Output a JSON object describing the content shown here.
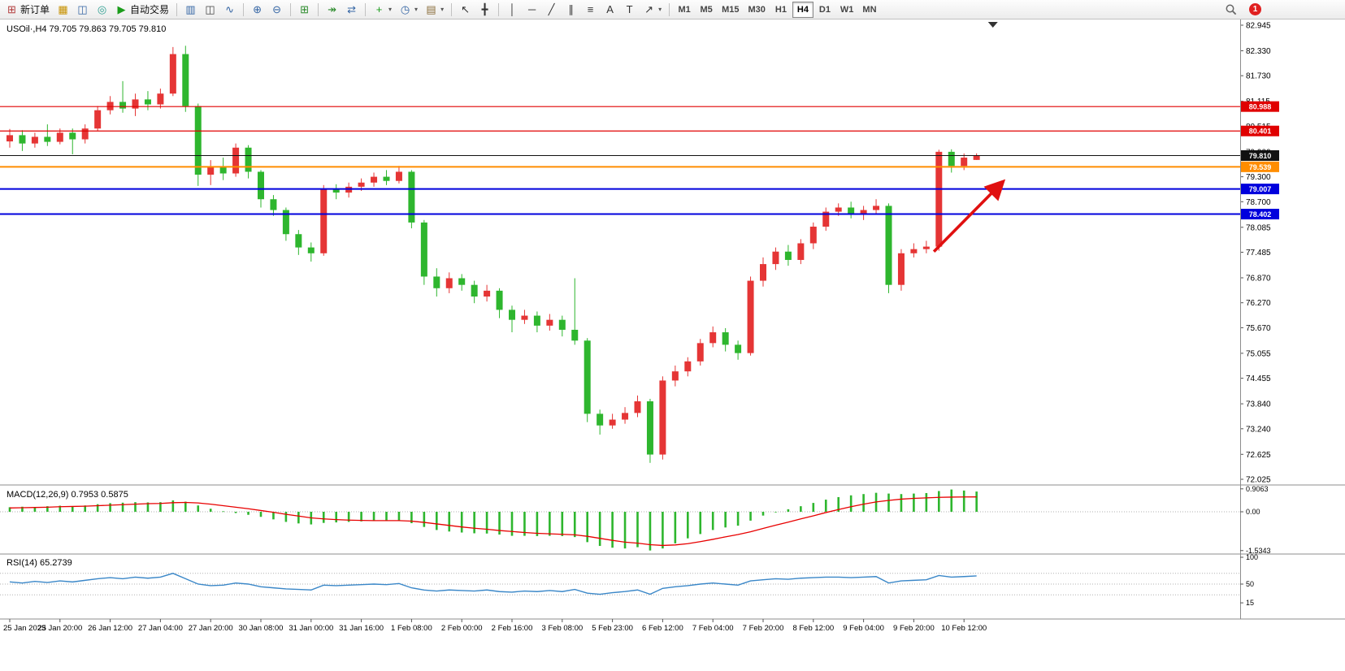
{
  "colors": {
    "up": "#e53535",
    "down": "#2eb62e",
    "macd_histogram": "#2eb62e",
    "macd_signal": "#e80000",
    "rsi_line": "#3a87c8",
    "arrow": "#e01010",
    "axis_text": "#000000",
    "panel_border": "#8c8c8c"
  },
  "toolbar": {
    "notification_count": "1",
    "groups": [
      [
        {
          "name": "new-order-button",
          "icon": "new-order-icon",
          "glyph": "⊞",
          "color": "#b23b3b",
          "label": "新订单"
        },
        {
          "name": "market-watch-button",
          "icon": "market-watch-icon",
          "glyph": "▦",
          "color": "#c79100"
        },
        {
          "name": "navigator-button",
          "icon": "navigator-icon",
          "glyph": "◫",
          "color": "#3465a4"
        },
        {
          "name": "community-button",
          "icon": "community-icon",
          "glyph": "◎",
          "color": "#2a9d8f"
        },
        {
          "name": "autotrading-button",
          "icon": "autotrading-icon",
          "glyph": "▶",
          "color": "#1a9c1a",
          "label": "自动交易"
        }
      ],
      [
        {
          "name": "bar-chart-button",
          "icon": "bar-chart-icon",
          "glyph": "▥",
          "color": "#3465a4"
        },
        {
          "name": "candlestick-button",
          "icon": "candlestick-icon",
          "glyph": "◫",
          "color": "#444444"
        },
        {
          "name": "line-chart-button",
          "icon": "line-chart-icon",
          "glyph": "∿",
          "color": "#3465a4"
        }
      ],
      [
        {
          "name": "zoom-in-button",
          "icon": "zoom-in-icon",
          "glyph": "⊕",
          "color": "#3465a4"
        },
        {
          "name": "zoom-out-button",
          "icon": "zoom-out-icon",
          "glyph": "⊖",
          "color": "#3465a4"
        }
      ],
      [
        {
          "name": "tile-windows-button",
          "icon": "tile-windows-icon",
          "glyph": "⊞",
          "color": "#2a8a2a"
        }
      ],
      [
        {
          "name": "autoscroll-button",
          "icon": "autoscroll-icon",
          "glyph": "↠",
          "color": "#2a8a2a"
        },
        {
          "name": "chart-shift-button",
          "icon": "chart-shift-icon",
          "glyph": "⇄",
          "color": "#3465a4"
        }
      ],
      [
        {
          "name": "indicators-button",
          "icon": "indicators-icon",
          "glyph": "+",
          "color": "#1a9c1a",
          "caret": true
        },
        {
          "name": "periods-button",
          "icon": "periods-icon",
          "glyph": "◷",
          "color": "#3465a4",
          "caret": true
        },
        {
          "name": "templates-button",
          "icon": "templates-icon",
          "glyph": "▤",
          "color": "#8a6d3b",
          "caret": true
        }
      ],
      [
        {
          "name": "cursor-button",
          "icon": "cursor-icon",
          "glyph": "↖",
          "color": "#333333"
        },
        {
          "name": "crosshair-button",
          "icon": "crosshair-icon",
          "glyph": "╋",
          "color": "#333333"
        }
      ],
      [
        {
          "name": "vertical-line-button",
          "icon": "vertical-line-icon",
          "glyph": "│",
          "color": "#333333"
        },
        {
          "name": "horizontal-line-button",
          "icon": "horizontal-line-icon",
          "glyph": "─",
          "color": "#333333"
        },
        {
          "name": "trendline-button",
          "icon": "trendline-icon",
          "glyph": "╱",
          "color": "#333333"
        },
        {
          "name": "channel-button",
          "icon": "channel-icon",
          "glyph": "∥",
          "color": "#333333"
        },
        {
          "name": "fibonacci-button",
          "icon": "fibonacci-icon",
          "glyph": "≡",
          "color": "#333333"
        },
        {
          "name": "text-button",
          "icon": "text-icon",
          "glyph": "A",
          "color": "#333333"
        },
        {
          "name": "text-label-button",
          "icon": "text-label-icon",
          "glyph": "T",
          "color": "#333333"
        },
        {
          "name": "arrows-button",
          "icon": "arrows-icon",
          "glyph": "↗",
          "color": "#333333",
          "caret": true
        }
      ]
    ],
    "timeframes": [
      {
        "label": "M1"
      },
      {
        "label": "M5"
      },
      {
        "label": "M15"
      },
      {
        "label": "M30"
      },
      {
        "label": "H1"
      },
      {
        "label": "H4",
        "active": true
      },
      {
        "label": "D1"
      },
      {
        "label": "W1"
      },
      {
        "label": "MN"
      }
    ]
  },
  "chart_data": {
    "type": "candlestick",
    "symbol": "USOil",
    "timeframe": "H4",
    "title": "USOil·,H4 79.705 79.863 79.705 79.810",
    "ohlc_current": {
      "open": 79.705,
      "high": 79.863,
      "low": 79.705,
      "close": 79.81
    },
    "price_axis": [
      82.945,
      82.33,
      81.73,
      81.115,
      80.515,
      79.9,
      79.3,
      78.7,
      78.085,
      77.485,
      76.87,
      76.27,
      75.67,
      75.055,
      74.455,
      73.84,
      73.24,
      72.625,
      72.025
    ],
    "time_labels": [
      "25 Jan 2023",
      "25 Jan 20:00",
      "26 Jan 12:00",
      "27 Jan 04:00",
      "27 Jan 20:00",
      "30 Jan 08:00",
      "31 Jan 00:00",
      "31 Jan 16:00",
      "1 Feb 08:00",
      "2 Feb 00:00",
      "2 Feb 16:00",
      "3 Feb 08:00",
      "5 Feb 23:00",
      "6 Feb 12:00",
      "7 Feb 04:00",
      "7 Feb 20:00",
      "8 Feb 12:00",
      "9 Feb 04:00",
      "9 Feb 20:00",
      "10 Feb 12:00"
    ],
    "candles": [
      [
        80.15,
        80.45,
        80.0,
        80.3
      ],
      [
        80.3,
        80.42,
        79.92,
        80.1
      ],
      [
        80.1,
        80.36,
        80.0,
        80.26
      ],
      [
        80.26,
        80.56,
        80.04,
        80.14
      ],
      [
        80.14,
        80.46,
        80.08,
        80.36
      ],
      [
        80.36,
        80.46,
        79.84,
        80.2
      ],
      [
        80.2,
        80.56,
        80.1,
        80.46
      ],
      [
        80.46,
        81.0,
        80.4,
        80.9
      ],
      [
        80.9,
        81.24,
        80.8,
        81.1
      ],
      [
        81.1,
        81.6,
        80.84,
        80.94
      ],
      [
        80.94,
        81.3,
        80.76,
        81.16
      ],
      [
        81.16,
        81.36,
        80.9,
        81.04
      ],
      [
        81.04,
        81.42,
        80.94,
        81.3
      ],
      [
        81.3,
        82.42,
        81.24,
        82.25
      ],
      [
        82.25,
        82.45,
        80.86,
        81.0
      ],
      [
        81.0,
        81.06,
        79.08,
        79.35
      ],
      [
        79.35,
        79.7,
        79.1,
        79.55
      ],
      [
        79.55,
        79.76,
        79.22,
        79.38
      ],
      [
        79.38,
        80.1,
        79.3,
        80.0
      ],
      [
        80.0,
        80.06,
        79.26,
        79.42
      ],
      [
        79.42,
        79.46,
        78.56,
        78.76
      ],
      [
        78.76,
        78.86,
        78.36,
        78.5
      ],
      [
        78.5,
        78.56,
        77.76,
        77.92
      ],
      [
        77.92,
        78.02,
        77.42,
        77.6
      ],
      [
        77.6,
        77.72,
        77.26,
        77.46
      ],
      [
        77.46,
        79.1,
        77.4,
        79.0
      ],
      [
        79.0,
        79.12,
        78.76,
        78.92
      ],
      [
        78.92,
        79.16,
        78.8,
        79.06
      ],
      [
        79.06,
        79.26,
        78.96,
        79.16
      ],
      [
        79.16,
        79.4,
        79.06,
        79.3
      ],
      [
        79.3,
        79.46,
        79.1,
        79.2
      ],
      [
        79.2,
        79.56,
        79.14,
        79.42
      ],
      [
        79.42,
        79.46,
        78.06,
        78.2
      ],
      [
        78.2,
        78.26,
        76.7,
        76.9
      ],
      [
        76.9,
        77.1,
        76.42,
        76.62
      ],
      [
        76.62,
        77.0,
        76.5,
        76.86
      ],
      [
        76.86,
        76.96,
        76.56,
        76.7
      ],
      [
        76.7,
        76.8,
        76.26,
        76.42
      ],
      [
        76.42,
        76.7,
        76.3,
        76.56
      ],
      [
        76.56,
        76.62,
        75.9,
        76.1
      ],
      [
        76.1,
        76.2,
        75.56,
        75.86
      ],
      [
        75.86,
        76.1,
        75.76,
        75.96
      ],
      [
        75.96,
        76.06,
        75.56,
        75.72
      ],
      [
        75.72,
        76.0,
        75.6,
        75.86
      ],
      [
        75.86,
        75.96,
        75.46,
        75.62
      ],
      [
        75.62,
        76.86,
        75.26,
        75.36
      ],
      [
        75.36,
        75.42,
        73.4,
        73.6
      ],
      [
        73.6,
        73.7,
        73.1,
        73.32
      ],
      [
        73.32,
        73.6,
        73.24,
        73.46
      ],
      [
        73.46,
        73.76,
        73.36,
        73.62
      ],
      [
        73.62,
        74.04,
        73.52,
        73.9
      ],
      [
        73.9,
        73.96,
        72.42,
        72.62
      ],
      [
        72.62,
        74.5,
        72.5,
        74.4
      ],
      [
        74.4,
        74.76,
        74.26,
        74.62
      ],
      [
        74.62,
        74.96,
        74.5,
        74.86
      ],
      [
        74.86,
        75.4,
        74.76,
        75.3
      ],
      [
        75.3,
        75.7,
        75.2,
        75.56
      ],
      [
        75.56,
        75.66,
        75.1,
        75.26
      ],
      [
        75.26,
        75.36,
        74.9,
        75.06
      ],
      [
        75.06,
        76.9,
        75.0,
        76.8
      ],
      [
        76.8,
        77.36,
        76.66,
        77.2
      ],
      [
        77.2,
        77.6,
        77.06,
        77.5
      ],
      [
        77.5,
        77.66,
        77.16,
        77.3
      ],
      [
        77.3,
        77.8,
        77.2,
        77.7
      ],
      [
        77.7,
        78.2,
        77.56,
        78.1
      ],
      [
        78.1,
        78.56,
        78.0,
        78.46
      ],
      [
        78.46,
        78.66,
        78.36,
        78.56
      ],
      [
        78.56,
        78.7,
        78.3,
        78.4
      ],
      [
        78.4,
        78.6,
        78.26,
        78.5
      ],
      [
        78.5,
        78.76,
        78.4,
        78.6
      ],
      [
        78.6,
        78.66,
        76.5,
        76.7
      ],
      [
        76.7,
        77.56,
        76.56,
        77.46
      ],
      [
        77.46,
        77.7,
        77.36,
        77.56
      ],
      [
        77.56,
        77.76,
        77.46,
        77.62
      ],
      [
        77.62,
        79.95,
        77.52,
        79.9
      ],
      [
        79.9,
        79.96,
        79.4,
        79.56
      ],
      [
        79.56,
        79.86,
        79.46,
        79.76
      ],
      [
        79.705,
        79.863,
        79.705,
        79.81
      ]
    ],
    "levels": [
      {
        "price": 80.988,
        "label": "80.988",
        "color": "#e00000",
        "width": 1.2,
        "name": "resistance-line-1"
      },
      {
        "price": 80.401,
        "label": "80.401",
        "color": "#e00000",
        "width": 1.2,
        "name": "resistance-line-2"
      },
      {
        "price": 79.81,
        "label": "79.810",
        "color": "#111111",
        "width": 1,
        "name": "current-price-line"
      },
      {
        "price": 79.539,
        "label": "79.539",
        "color": "#ff8d00",
        "width": 2,
        "name": "orange-level-line"
      },
      {
        "price": 79.007,
        "label": "79.007",
        "color": "#0000dd",
        "width": 2,
        "name": "support-line-1"
      },
      {
        "price": 78.402,
        "label": "78.402",
        "color": "#0000dd",
        "width": 2,
        "name": "support-line-2"
      }
    ],
    "annotations": {
      "arrow": {
        "from": {
          "i": 73.6,
          "price": 77.5
        },
        "to": {
          "i": 79.0,
          "price": 79.15
        }
      }
    },
    "shift_marker_i": 78.3,
    "macd": {
      "label": "MACD(12,26,9) 0.7953 0.5875",
      "axis": [
        {
          "value": 0.9063,
          "label": "0.9063"
        },
        {
          "value": 0,
          "label": "0.00"
        },
        {
          "value": -1.5343,
          "label": "-1.5343"
        }
      ],
      "histogram": [
        0.18,
        0.2,
        0.19,
        0.22,
        0.24,
        0.22,
        0.25,
        0.3,
        0.34,
        0.36,
        0.38,
        0.37,
        0.38,
        0.45,
        0.4,
        0.25,
        0.12,
        0.02,
        -0.05,
        -0.12,
        -0.2,
        -0.3,
        -0.4,
        -0.46,
        -0.5,
        -0.44,
        -0.42,
        -0.4,
        -0.38,
        -0.36,
        -0.35,
        -0.34,
        -0.45,
        -0.6,
        -0.72,
        -0.78,
        -0.82,
        -0.85,
        -0.86,
        -0.9,
        -0.95,
        -0.95,
        -0.96,
        -0.95,
        -0.96,
        -1.0,
        -1.2,
        -1.35,
        -1.42,
        -1.45,
        -1.4,
        -1.53,
        -1.45,
        -1.25,
        -1.05,
        -0.88,
        -0.72,
        -0.62,
        -0.55,
        -0.35,
        -0.15,
        0.0,
        0.1,
        0.22,
        0.35,
        0.48,
        0.58,
        0.65,
        0.7,
        0.75,
        0.72,
        0.7,
        0.72,
        0.74,
        0.82,
        0.88,
        0.84,
        0.8
      ],
      "signal": [
        0.15,
        0.16,
        0.17,
        0.18,
        0.2,
        0.21,
        0.22,
        0.24,
        0.26,
        0.28,
        0.3,
        0.32,
        0.33,
        0.36,
        0.37,
        0.35,
        0.3,
        0.24,
        0.18,
        0.12,
        0.05,
        -0.02,
        -0.1,
        -0.17,
        -0.24,
        -0.28,
        -0.31,
        -0.33,
        -0.34,
        -0.35,
        -0.35,
        -0.35,
        -0.37,
        -0.42,
        -0.48,
        -0.54,
        -0.6,
        -0.65,
        -0.69,
        -0.74,
        -0.78,
        -0.82,
        -0.85,
        -0.87,
        -0.89,
        -0.91,
        -0.97,
        -1.05,
        -1.13,
        -1.2,
        -1.24,
        -1.3,
        -1.33,
        -1.31,
        -1.26,
        -1.18,
        -1.09,
        -0.99,
        -0.9,
        -0.79,
        -0.66,
        -0.53,
        -0.41,
        -0.28,
        -0.16,
        -0.03,
        0.09,
        0.2,
        0.3,
        0.39,
        0.45,
        0.5,
        0.53,
        0.55,
        0.57,
        0.58,
        0.585,
        0.5875
      ]
    },
    "rsi": {
      "label": "RSI(14) 65.2739",
      "axis": [
        {
          "value": 100,
          "label": "100"
        },
        {
          "value": 50,
          "label": "50"
        },
        {
          "value": 15,
          "label": "15"
        }
      ],
      "levels": [
        70,
        50,
        30
      ],
      "values": [
        54,
        52,
        55,
        53,
        56,
        54,
        57,
        60,
        62,
        60,
        63,
        61,
        63,
        70,
        60,
        50,
        47,
        48,
        52,
        50,
        45,
        43,
        41,
        40,
        39,
        48,
        47,
        48,
        49,
        50,
        49,
        51,
        43,
        39,
        37,
        39,
        38,
        37,
        39,
        36,
        35,
        37,
        36,
        38,
        36,
        40,
        33,
        31,
        34,
        36,
        39,
        31,
        42,
        45,
        47,
        50,
        52,
        50,
        48,
        56,
        58,
        60,
        59,
        61,
        62,
        63,
        63,
        62,
        63,
        64,
        52,
        56,
        57,
        58,
        66,
        63,
        64,
        65.27
      ]
    }
  }
}
